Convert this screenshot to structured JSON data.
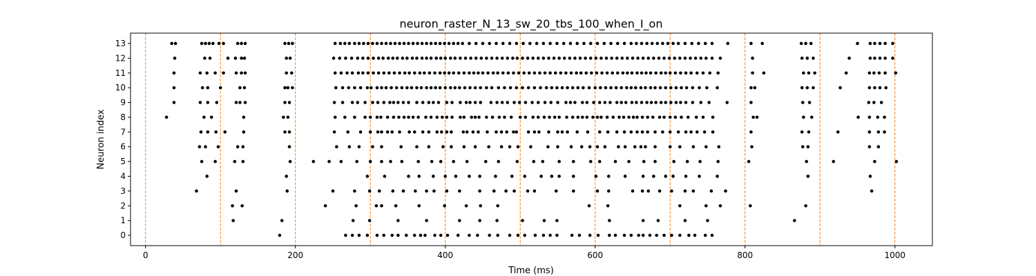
{
  "chart_data": {
    "type": "scatter",
    "title": "neuron_raster_N_13_sw_20_tbs_100_when_I_on",
    "xlabel": "Time (ms)",
    "ylabel": "Neuron index",
    "xlim": [
      -20,
      1050
    ],
    "ylim": [
      -0.7,
      13.7
    ],
    "xticks": [
      0,
      200,
      400,
      600,
      800,
      1000
    ],
    "yticks": [
      0,
      1,
      2,
      3,
      4,
      5,
      6,
      7,
      8,
      9,
      10,
      11,
      12,
      13
    ],
    "marker_color": "#000000",
    "vline_color": "#ff7f0e",
    "vlines": [
      0,
      100,
      200,
      300,
      400,
      500,
      600,
      700,
      800,
      900,
      1000
    ],
    "series": [
      {
        "neuron": 0,
        "times": [
          179,
          267,
          276,
          285,
          296,
          309,
          318,
          329,
          337,
          348,
          359,
          367,
          373,
          386,
          394,
          403,
          417,
          432,
          443,
          459,
          470,
          486,
          497,
          506,
          520,
          531,
          540,
          549,
          569,
          579,
          593,
          604,
          619,
          627,
          639,
          648,
          658,
          664,
          673,
          682,
          692,
          702,
          713,
          725,
          733,
          747,
          756
        ]
      },
      {
        "neuron": 1,
        "times": [
          117,
          182,
          277,
          299,
          337,
          375,
          419,
          446,
          469,
          503,
          532,
          549,
          619,
          664,
          684,
          720,
          750,
          866
        ]
      },
      {
        "neuron": 2,
        "times": [
          116,
          129,
          240,
          281,
          308,
          315,
          334,
          365,
          399,
          428,
          447,
          470,
          592,
          617,
          713,
          748,
          767,
          807,
          881
        ]
      },
      {
        "neuron": 3,
        "times": [
          68,
          121,
          189,
          250,
          279,
          299,
          312,
          330,
          344,
          360,
          375,
          385,
          402,
          419,
          446,
          465,
          481,
          492,
          510,
          519,
          548,
          571,
          603,
          618,
          650,
          663,
          671,
          686,
          702,
          720,
          731,
          755,
          774,
          969
        ]
      },
      {
        "neuron": 4,
        "times": [
          82,
          188,
          296,
          319,
          351,
          365,
          384,
          400,
          414,
          432,
          446,
          467,
          489,
          506,
          528,
          542,
          552,
          571,
          601,
          618,
          640,
          664,
          678,
          694,
          704,
          721,
          739,
          763,
          884,
          967
        ]
      },
      {
        "neuron": 5,
        "times": [
          75,
          93,
          119,
          130,
          193,
          224,
          245,
          261,
          282,
          300,
          315,
          327,
          342,
          364,
          382,
          394,
          411,
          429,
          454,
          471,
          496,
          518,
          530,
          552,
          571,
          594,
          606,
          627,
          645,
          665,
          680,
          705,
          723,
          740,
          764,
          805,
          882,
          918,
          973,
          1002
        ]
      },
      {
        "neuron": 6,
        "times": [
          72,
          80,
          97,
          123,
          130,
          192,
          255,
          272,
          285,
          303,
          315,
          341,
          362,
          378,
          397,
          408,
          425,
          440,
          458,
          475,
          486,
          497,
          514,
          537,
          550,
          568,
          582,
          593,
          603,
          613,
          631,
          640,
          653,
          661,
          667,
          680,
          700,
          713,
          731,
          748,
          765,
          809,
          877,
          884,
          966,
          978
        ]
      },
      {
        "neuron": 7,
        "times": [
          74,
          83,
          94,
          106,
          131,
          186,
          192,
          252,
          270,
          287,
          300,
          310,
          315,
          323,
          329,
          339,
          352,
          359,
          370,
          378,
          389,
          395,
          402,
          408,
          424,
          429,
          437,
          444,
          456,
          468,
          475,
          482,
          491,
          495,
          511,
          519,
          525,
          538,
          550,
          556,
          563,
          576,
          590,
          606,
          617,
          629,
          639,
          648,
          656,
          663,
          670,
          680,
          690,
          700,
          711,
          721,
          728,
          736,
          746,
          757,
          808,
          876,
          885,
          924,
          966,
          978,
          986
        ]
      },
      {
        "neuron": 8,
        "times": [
          28,
          78,
          88,
          131,
          184,
          190,
          253,
          266,
          279,
          293,
          300,
          309,
          314,
          323,
          331,
          338,
          345,
          351,
          357,
          364,
          374,
          381,
          389,
          396,
          402,
          409,
          420,
          425,
          435,
          440,
          445,
          455,
          463,
          472,
          479,
          488,
          500,
          507,
          517,
          524,
          532,
          539,
          546,
          552,
          562,
          570,
          577,
          583,
          589,
          597,
          603,
          608,
          616,
          624,
          632,
          638,
          645,
          651,
          656,
          663,
          670,
          677,
          686,
          692,
          700,
          707,
          715,
          724,
          735,
          744,
          757,
          811,
          816,
          878,
          889,
          951,
          966,
          977,
          986
        ]
      },
      {
        "neuron": 9,
        "times": [
          38,
          73,
          83,
          95,
          121,
          126,
          133,
          186,
          192,
          252,
          263,
          276,
          283,
          293,
          303,
          310,
          318,
          326,
          331,
          337,
          344,
          351,
          362,
          370,
          378,
          384,
          391,
          402,
          409,
          420,
          428,
          433,
          440,
          447,
          461,
          469,
          476,
          483,
          492,
          499,
          507,
          516,
          524,
          533,
          541,
          550,
          561,
          567,
          573,
          583,
          589,
          598,
          606,
          613,
          620,
          629,
          635,
          641,
          649,
          655,
          662,
          669,
          675,
          681,
          688,
          694,
          701,
          708,
          714,
          721,
          730,
          741,
          752,
          776,
          808,
          877,
          886,
          965,
          972,
          982
        ]
      },
      {
        "neuron": 10,
        "times": [
          38,
          76,
          83,
          100,
          126,
          132,
          186,
          190,
          196,
          254,
          263,
          271,
          279,
          287,
          296,
          301,
          309,
          315,
          321,
          328,
          335,
          342,
          349,
          355,
          362,
          368,
          375,
          381,
          387,
          393,
          400,
          407,
          413,
          419,
          426,
          433,
          440,
          447,
          455,
          462,
          471,
          479,
          487,
          495,
          503,
          511,
          519,
          527,
          535,
          542,
          549,
          556,
          563,
          570,
          577,
          584,
          592,
          600,
          607,
          614,
          621,
          628,
          635,
          642,
          648,
          654,
          661,
          667,
          674,
          680,
          687,
          694,
          701,
          708,
          715,
          722,
          730,
          739,
          749,
          763,
          808,
          813,
          876,
          883,
          891,
          927,
          966,
          973,
          980,
          988
        ]
      },
      {
        "neuron": 11,
        "times": [
          38,
          73,
          82,
          93,
          104,
          121,
          128,
          133,
          188,
          195,
          253,
          261,
          269,
          276,
          284,
          290,
          297,
          304,
          311,
          318,
          325,
          332,
          339,
          346,
          352,
          359,
          366,
          372,
          379,
          386,
          393,
          399,
          405,
          411,
          418,
          425,
          432,
          438,
          444,
          450,
          457,
          464,
          470,
          477,
          484,
          491,
          498,
          505,
          512,
          519,
          526,
          533,
          540,
          547,
          554,
          561,
          568,
          575,
          581,
          588,
          595,
          602,
          609,
          616,
          623,
          630,
          637,
          643,
          649,
          656,
          662,
          668,
          674,
          681,
          688,
          694,
          700,
          707,
          714,
          721,
          728,
          736,
          744,
          753,
          764,
          810,
          825,
          878,
          885,
          893,
          935,
          966,
          972,
          979,
          987,
          1001
        ]
      },
      {
        "neuron": 12,
        "times": [
          39,
          79,
          86,
          110,
          120,
          128,
          132,
          188,
          193,
          251,
          259,
          267,
          275,
          283,
          290,
          297,
          304,
          311,
          317,
          324,
          330,
          336,
          343,
          349,
          356,
          362,
          369,
          375,
          381,
          388,
          394,
          400,
          407,
          413,
          420,
          427,
          434,
          441,
          448,
          455,
          462,
          469,
          476,
          483,
          490,
          496,
          503,
          510,
          517,
          524,
          531,
          538,
          545,
          552,
          559,
          566,
          573,
          580,
          587,
          594,
          601,
          608,
          615,
          622,
          629,
          636,
          643,
          650,
          657,
          664,
          671,
          678,
          685,
          692,
          699,
          706,
          713,
          720,
          727,
          734,
          741,
          748,
          756,
          767,
          810,
          876,
          883,
          891,
          939,
          967,
          973,
          980,
          987,
          997
        ]
      },
      {
        "neuron": 13,
        "times": [
          35,
          40,
          75,
          80,
          85,
          90,
          98,
          104,
          123,
          128,
          133,
          186,
          191,
          196,
          253,
          260,
          266,
          272,
          279,
          285,
          291,
          297,
          303,
          309,
          315,
          321,
          327,
          333,
          339,
          345,
          351,
          357,
          363,
          369,
          375,
          381,
          387,
          393,
          399,
          405,
          411,
          417,
          423,
          432,
          441,
          450,
          459,
          468,
          477,
          486,
          495,
          504,
          513,
          522,
          531,
          540,
          549,
          558,
          567,
          576,
          585,
          594,
          603,
          612,
          621,
          630,
          639,
          648,
          655,
          662,
          669,
          676,
          683,
          690,
          697,
          704,
          711,
          720,
          729,
          738,
          747,
          756,
          777,
          808,
          823,
          875,
          881,
          888,
          950,
          967,
          973,
          980,
          987,
          997
        ]
      }
    ]
  }
}
